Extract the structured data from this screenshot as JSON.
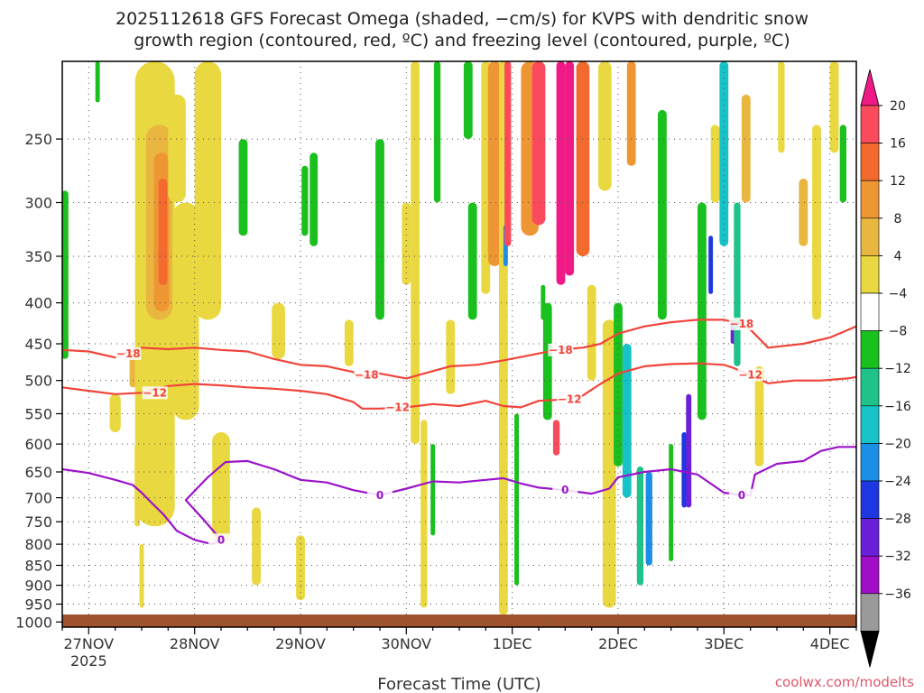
{
  "chart_data": {
    "type": "heatmap",
    "title_line1": "2025112618 GFS Forecast Omega (shaded, −cm/s) for KVPS with dendritic snow",
    "title_line2": "growth region (contoured, red, ºC) and freezing level (contoured, purple, ºC)",
    "xlabel": "Forecast Time (UTC)",
    "ylabel": "",
    "credit": "coolwx.com/modelts",
    "x_ticks": [
      {
        "label": "27NOV",
        "sub": "2025",
        "hours": 6
      },
      {
        "label": "28NOV",
        "sub": "",
        "hours": 30
      },
      {
        "label": "29NOV",
        "sub": "",
        "hours": 54
      },
      {
        "label": "30NOV",
        "sub": "",
        "hours": 78
      },
      {
        "label": "1DEC",
        "sub": "",
        "hours": 102
      },
      {
        "label": "2DEC",
        "sub": "",
        "hours": 126
      },
      {
        "label": "3DEC",
        "sub": "",
        "hours": 150
      },
      {
        "label": "4DEC",
        "sub": "",
        "hours": 174
      }
    ],
    "x_range_hours": [
      0,
      180
    ],
    "y_ticks": [
      250,
      300,
      350,
      400,
      450,
      500,
      550,
      600,
      650,
      700,
      750,
      800,
      850,
      900,
      950,
      1000
    ],
    "y_range_hPa": [
      200,
      1015
    ],
    "colorbar": {
      "labels": [
        "20",
        "16",
        "12",
        "8",
        "4",
        "−4",
        "−8",
        "−12",
        "−16",
        "−20",
        "−24",
        "−28",
        "−32",
        "−36"
      ],
      "colors": [
        "#fb4a5c",
        "#f26a2e",
        "#ef9634",
        "#e9b640",
        "#e9d83f",
        "#ffffff",
        "#19c01e",
        "#1fc38a",
        "#17c2c8",
        "#1b8fe6",
        "#1d38e0",
        "#6a1fd9",
        "#a10ec8",
        "#9a9a9a"
      ],
      "top_color": "#f01a86",
      "bottom_color": "#000000"
    },
    "series": [
      {
        "name": "Dendritic growth −18 ºC",
        "color": "#f0443a",
        "label": "−18",
        "label_at_hours": [
          15,
          69,
          113,
          154
        ],
        "points": [
          [
            0,
            458
          ],
          [
            6,
            460
          ],
          [
            12,
            468
          ],
          [
            14,
            463
          ],
          [
            18,
            455
          ],
          [
            24,
            457
          ],
          [
            30,
            455
          ],
          [
            36,
            458
          ],
          [
            42,
            460
          ],
          [
            48,
            470
          ],
          [
            54,
            478
          ],
          [
            60,
            480
          ],
          [
            66,
            488
          ],
          [
            67,
            495
          ],
          [
            70,
            492
          ],
          [
            72,
            490
          ],
          [
            78,
            497
          ],
          [
            82,
            490
          ],
          [
            88,
            480
          ],
          [
            94,
            478
          ],
          [
            100,
            472
          ],
          [
            106,
            465
          ],
          [
            112,
            458
          ],
          [
            118,
            455
          ],
          [
            122,
            450
          ],
          [
            126,
            437
          ],
          [
            132,
            428
          ],
          [
            138,
            423
          ],
          [
            144,
            420
          ],
          [
            150,
            420
          ],
          [
            154,
            425
          ],
          [
            156,
            432
          ],
          [
            160,
            455
          ],
          [
            168,
            450
          ],
          [
            174,
            442
          ],
          [
            180,
            428
          ]
        ]
      },
      {
        "name": "Dendritic growth −12 ºC",
        "color": "#f0443a",
        "label": "−12",
        "label_at_hours": [
          21,
          76,
          115,
          156
        ],
        "points": [
          [
            0,
            510
          ],
          [
            6,
            515
          ],
          [
            12,
            520
          ],
          [
            18,
            518
          ],
          [
            24,
            508
          ],
          [
            30,
            505
          ],
          [
            36,
            507
          ],
          [
            42,
            510
          ],
          [
            48,
            512
          ],
          [
            54,
            515
          ],
          [
            60,
            520
          ],
          [
            66,
            532
          ],
          [
            68,
            542
          ],
          [
            72,
            542
          ],
          [
            78,
            540
          ],
          [
            84,
            535
          ],
          [
            90,
            538
          ],
          [
            96,
            530
          ],
          [
            100,
            538
          ],
          [
            104,
            540
          ],
          [
            108,
            530
          ],
          [
            114,
            528
          ],
          [
            118,
            522
          ],
          [
            122,
            505
          ],
          [
            126,
            490
          ],
          [
            132,
            480
          ],
          [
            138,
            477
          ],
          [
            144,
            476
          ],
          [
            150,
            478
          ],
          [
            152,
            482
          ],
          [
            156,
            492
          ],
          [
            160,
            504
          ],
          [
            166,
            500
          ],
          [
            172,
            500
          ],
          [
            178,
            497
          ],
          [
            180,
            495
          ]
        ]
      },
      {
        "name": "Freezing level 0 ºC",
        "color": "#9b13c9",
        "label": "0",
        "label_at_hours": [
          36,
          72,
          114,
          154
        ],
        "points": [
          [
            0,
            645
          ],
          [
            6,
            652
          ],
          [
            12,
            665
          ],
          [
            16,
            675
          ],
          [
            18,
            690
          ],
          [
            20,
            708
          ],
          [
            23,
            735
          ],
          [
            26,
            770
          ],
          [
            30,
            790
          ],
          [
            34,
            800
          ],
          [
            36,
            790
          ],
          [
            32,
            745
          ],
          [
            28,
            705
          ],
          [
            33,
            660
          ],
          [
            37,
            632
          ],
          [
            42,
            630
          ],
          [
            48,
            645
          ],
          [
            54,
            665
          ],
          [
            60,
            670
          ],
          [
            66,
            685
          ],
          [
            72,
            695
          ],
          [
            78,
            682
          ],
          [
            84,
            668
          ],
          [
            90,
            670
          ],
          [
            96,
            665
          ],
          [
            100,
            662
          ],
          [
            104,
            672
          ],
          [
            108,
            680
          ],
          [
            114,
            685
          ],
          [
            120,
            692
          ],
          [
            124,
            682
          ],
          [
            126,
            660
          ],
          [
            132,
            650
          ],
          [
            138,
            645
          ],
          [
            144,
            655
          ],
          [
            150,
            690
          ],
          [
            154,
            695
          ],
          [
            156,
            695
          ],
          [
            157,
            655
          ],
          [
            162,
            635
          ],
          [
            168,
            630
          ],
          [
            172,
            612
          ],
          [
            176,
            605
          ],
          [
            180,
            605
          ]
        ]
      }
    ]
  }
}
